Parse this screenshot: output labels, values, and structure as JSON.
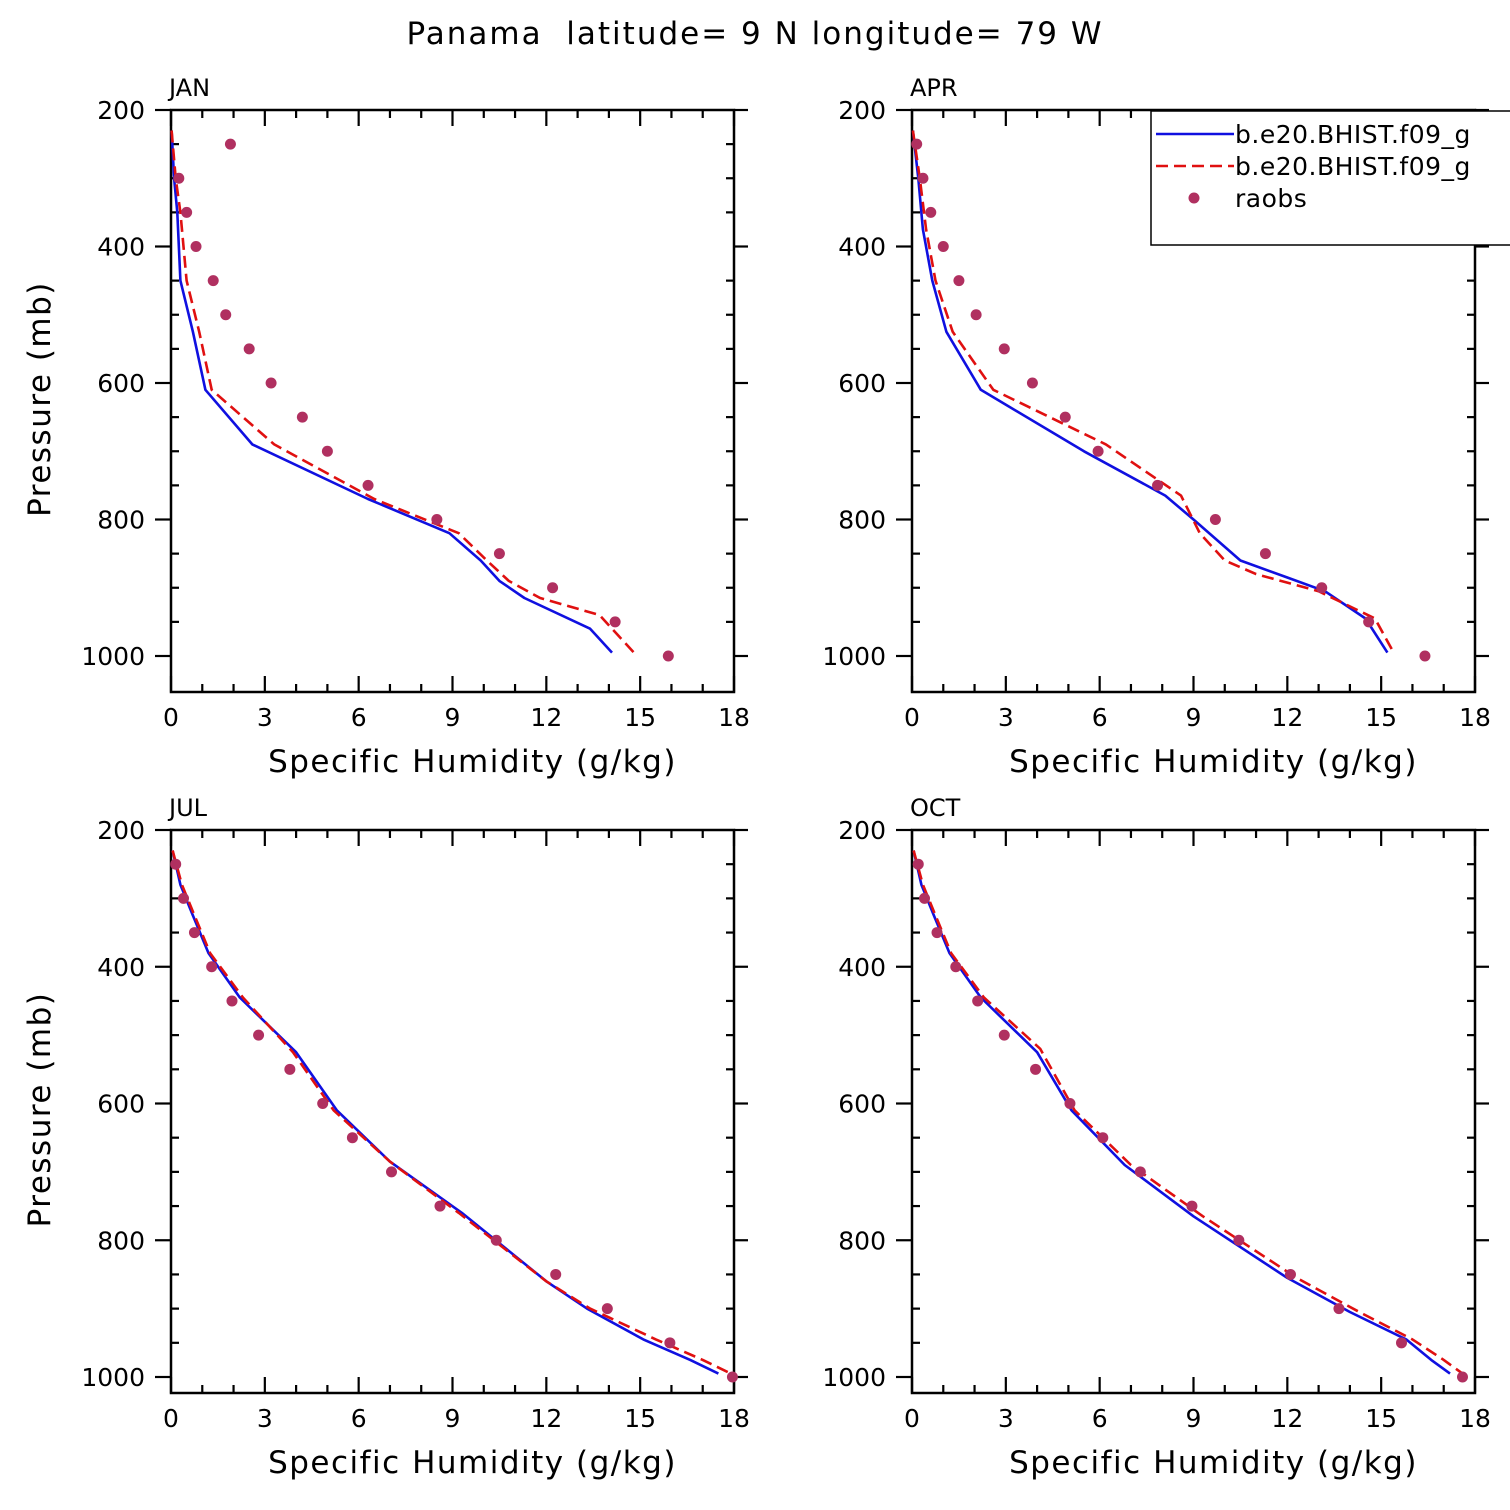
{
  "figure": {
    "title": "Panama  latitude= 9 N longitude= 79 W"
  },
  "legend": {
    "entries": [
      {
        "label": "b.e20.BHIST.f09_g",
        "style": "solid",
        "color": "#1010e0"
      },
      {
        "label": "b.e20.BHIST.f09_g",
        "style": "dashed",
        "color": "#e01010"
      },
      {
        "label": "raobs",
        "style": "dots",
        "color": "#b03060"
      }
    ]
  },
  "chart_data": [
    {
      "type": "line",
      "panel": "JAN",
      "xlabel": "Specific Humidity (g/kg)",
      "ylabel": "Pressure (mb)",
      "xlim": [
        0,
        18
      ],
      "ylim": [
        200,
        1000
      ],
      "y_inverted": true,
      "xticks": [
        "0",
        "3",
        "6",
        "9",
        "12",
        "15",
        "18"
      ],
      "yticks": [
        "200",
        "400",
        "600",
        "800",
        "1000"
      ],
      "series": [
        {
          "name": "b.e20.BHIST.f09_g",
          "style": "solid",
          "color": "#1010e0",
          "x": [
            0.02,
            0.1,
            0.2,
            0.3,
            0.7,
            1.1,
            2.6,
            6.3,
            8.9,
            9.9,
            10.5,
            11.3,
            13.4,
            14.1
          ],
          "y": [
            230,
            300,
            350,
            450,
            525,
            610,
            690,
            770,
            820,
            860,
            890,
            915,
            960,
            995
          ]
        },
        {
          "name": "b.e20.BHIST.f09_g",
          "style": "dashed",
          "color": "#e01010",
          "x": [
            0.02,
            0.15,
            0.3,
            0.5,
            0.9,
            1.3,
            3.3,
            6.5,
            9.2,
            10.1,
            10.8,
            11.8,
            13.7,
            14.8
          ],
          "y": [
            230,
            300,
            350,
            450,
            525,
            610,
            690,
            770,
            820,
            860,
            890,
            915,
            940,
            995
          ]
        },
        {
          "name": "raobs",
          "style": "dots",
          "color": "#b03060",
          "x": [
            1.9,
            0.25,
            0.5,
            0.8,
            1.35,
            1.75,
            2.5,
            3.2,
            4.2,
            5.0,
            6.3,
            8.5,
            10.5,
            12.2,
            14.2,
            15.9
          ],
          "y": [
            250,
            300,
            350,
            400,
            450,
            500,
            550,
            600,
            650,
            700,
            750,
            800,
            850,
            900,
            950,
            1000
          ]
        }
      ]
    },
    {
      "type": "line",
      "panel": "APR",
      "xlabel": "Specific Humidity (g/kg)",
      "ylabel": "",
      "xlim": [
        0,
        18
      ],
      "ylim": [
        200,
        1000
      ],
      "y_inverted": true,
      "xticks": [
        "0",
        "3",
        "6",
        "9",
        "12",
        "15",
        "18"
      ],
      "yticks": [
        "200",
        "400",
        "600",
        "800",
        "1000"
      ],
      "series": [
        {
          "name": "b.e20.BHIST.f09_g",
          "style": "solid",
          "color": "#1010e0",
          "x": [
            0.03,
            0.2,
            0.35,
            0.65,
            1.1,
            2.2,
            5.5,
            8.1,
            9.0,
            10.5,
            12.0,
            13.2,
            14.5,
            15.2
          ],
          "y": [
            230,
            300,
            375,
            450,
            525,
            610,
            700,
            765,
            800,
            860,
            885,
            905,
            945,
            995
          ]
        },
        {
          "name": "b.e20.BHIST.f09_g",
          "style": "dashed",
          "color": "#e01010",
          "x": [
            0.03,
            0.25,
            0.45,
            0.75,
            1.3,
            2.6,
            6.2,
            8.6,
            9.2,
            10.0,
            11.0,
            13.0,
            14.8,
            15.4
          ],
          "y": [
            230,
            300,
            375,
            450,
            525,
            610,
            690,
            765,
            820,
            860,
            880,
            905,
            945,
            995
          ]
        },
        {
          "name": "raobs",
          "style": "dots",
          "color": "#b03060",
          "x": [
            0.15,
            0.35,
            0.6,
            1.0,
            1.5,
            2.05,
            2.95,
            3.85,
            4.9,
            5.95,
            7.85,
            9.7,
            11.3,
            13.1,
            14.6,
            16.4
          ],
          "y": [
            250,
            300,
            350,
            400,
            450,
            500,
            550,
            600,
            650,
            700,
            750,
            800,
            850,
            900,
            950,
            1000
          ]
        }
      ]
    },
    {
      "type": "line",
      "panel": "JUL",
      "xlabel": "Specific Humidity (g/kg)",
      "ylabel": "Pressure (mb)",
      "xlim": [
        0,
        18
      ],
      "ylim": [
        200,
        1000
      ],
      "y_inverted": true,
      "xticks": [
        "0",
        "3",
        "6",
        "9",
        "12",
        "15",
        "18"
      ],
      "yticks": [
        "200",
        "400",
        "600",
        "800",
        "1000"
      ],
      "series": [
        {
          "name": "b.e20.BHIST.f09_g",
          "style": "solid",
          "color": "#1010e0",
          "x": [
            0.05,
            0.3,
            0.7,
            1.2,
            2.2,
            4.0,
            5.3,
            7.0,
            9.3,
            12.0,
            13.3,
            15.1,
            16.6,
            17.5
          ],
          "y": [
            230,
            280,
            325,
            380,
            445,
            525,
            610,
            685,
            760,
            860,
            900,
            945,
            975,
            995
          ]
        },
        {
          "name": "b.e20.BHIST.f09_g",
          "style": "dashed",
          "color": "#e01010",
          "x": [
            0.05,
            0.35,
            0.75,
            1.25,
            2.3,
            3.9,
            5.2,
            7.0,
            9.2,
            12.0,
            13.4,
            15.5,
            17.0,
            17.9
          ],
          "y": [
            230,
            280,
            325,
            380,
            445,
            525,
            610,
            685,
            760,
            860,
            900,
            945,
            975,
            995
          ]
        },
        {
          "name": "raobs",
          "style": "dots",
          "color": "#b03060",
          "x": [
            0.15,
            0.4,
            0.75,
            1.3,
            1.95,
            2.8,
            3.8,
            4.85,
            5.8,
            7.05,
            8.6,
            10.4,
            12.3,
            13.95,
            15.95,
            17.95
          ],
          "y": [
            250,
            300,
            350,
            400,
            450,
            500,
            550,
            600,
            650,
            700,
            750,
            800,
            850,
            900,
            950,
            1000
          ]
        }
      ]
    },
    {
      "type": "line",
      "panel": "OCT",
      "xlabel": "Specific Humidity (g/kg)",
      "ylabel": "",
      "xlim": [
        0,
        18
      ],
      "ylim": [
        200,
        1000
      ],
      "y_inverted": true,
      "xticks": [
        "0",
        "3",
        "6",
        "9",
        "12",
        "15",
        "18"
      ],
      "yticks": [
        "200",
        "400",
        "600",
        "800",
        "1000"
      ],
      "series": [
        {
          "name": "b.e20.BHIST.f09_g",
          "style": "solid",
          "color": "#1010e0",
          "x": [
            0.05,
            0.3,
            0.7,
            1.2,
            2.2,
            4.0,
            5.1,
            6.8,
            9.0,
            12.0,
            14.0,
            15.8,
            16.6,
            17.2
          ],
          "y": [
            230,
            280,
            325,
            380,
            445,
            525,
            610,
            690,
            765,
            855,
            905,
            945,
            975,
            995
          ]
        },
        {
          "name": "b.e20.BHIST.f09_g",
          "style": "dashed",
          "color": "#e01010",
          "x": [
            0.05,
            0.35,
            0.75,
            1.25,
            2.3,
            4.1,
            5.2,
            7.0,
            9.3,
            12.3,
            14.3,
            16.0,
            17.0,
            17.6
          ],
          "y": [
            230,
            280,
            325,
            380,
            445,
            520,
            610,
            690,
            765,
            855,
            905,
            945,
            975,
            995
          ]
        },
        {
          "name": "raobs",
          "style": "dots",
          "color": "#b03060",
          "x": [
            0.2,
            0.4,
            0.8,
            1.4,
            2.1,
            2.95,
            3.95,
            5.05,
            6.1,
            7.3,
            8.95,
            10.45,
            12.1,
            13.65,
            15.65,
            17.6
          ],
          "y": [
            250,
            300,
            350,
            400,
            450,
            500,
            550,
            600,
            650,
            700,
            750,
            800,
            850,
            900,
            950,
            1000
          ]
        }
      ]
    }
  ]
}
